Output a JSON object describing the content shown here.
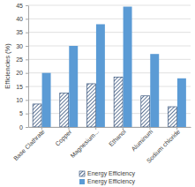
{
  "chart_data": {
    "type": "bar",
    "y_label": "Efficiencies (%)",
    "categories": [
      "Base Clathrate",
      "Copper",
      "Magnesium...",
      "Ethanol",
      "Aluminum",
      "Sodium chloride"
    ],
    "series": [
      {
        "name": "Energy Efficiency",
        "color": "#1f3f6b",
        "values": [
          8.5,
          12.5,
          16,
          18.5,
          11.5,
          7.5
        ]
      },
      {
        "name": "Energy Efficiency",
        "color": "#5b9bd5",
        "values": [
          20,
          30,
          38,
          44.5,
          27,
          18
        ]
      }
    ],
    "ylim": [
      0,
      45
    ],
    "yticks": [
      0,
      5,
      10,
      15,
      20,
      25,
      30,
      35,
      40,
      45
    ],
    "grid": true,
    "legend": "bottom"
  }
}
